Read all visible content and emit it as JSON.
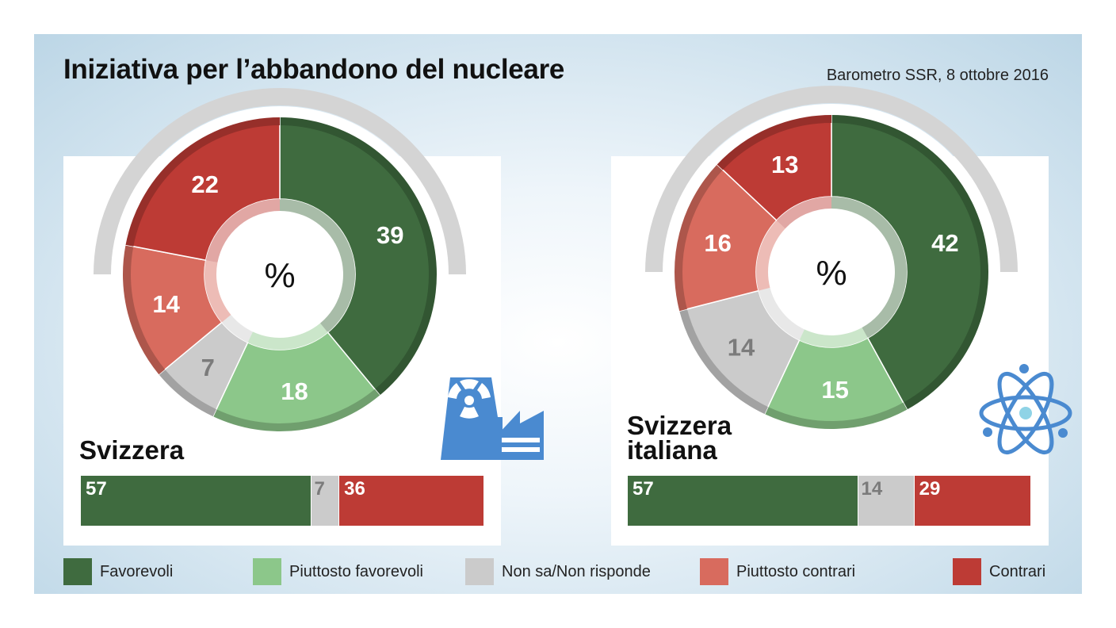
{
  "header": {
    "title": "Iniziativa per l’abbandono del nucleare",
    "source": "Barometro SSR, 8 ottobre 2016"
  },
  "colors": {
    "favorevoli": "#3f6b3f",
    "piuttosto_favorevoli": "#8cc78a",
    "non_sa": "#cbcbcb",
    "piuttosto_contrari": "#d86b5e",
    "contrari": "#bd3b35",
    "icon_blue": "#4a8ad0"
  },
  "donut_center_label": "%",
  "legend": [
    {
      "label": "Favorevoli",
      "color": "#3f6b3f"
    },
    {
      "label": "Piuttosto favorevoli",
      "color": "#8cc78a"
    },
    {
      "label": "Non sa/Non risponde",
      "color": "#cbcbcb"
    },
    {
      "label": "Piuttosto contrari",
      "color": "#d86b5e"
    },
    {
      "label": "Contrari",
      "color": "#bd3b35"
    }
  ],
  "regions": {
    "svizzera": {
      "label": "Svizzera",
      "icon": "nuclear-power-plant-icon"
    },
    "svizzera_italiana": {
      "label": "Svizzera italiana",
      "icon": "atom-icon"
    }
  },
  "chart_data": [
    {
      "type": "pie",
      "name": "Svizzera",
      "categories": [
        "Favorevoli",
        "Piuttosto favorevoli",
        "Non sa/Non risponde",
        "Piuttosto contrari",
        "Contrari"
      ],
      "values": [
        39,
        18,
        7,
        14,
        22
      ],
      "unit": "%"
    },
    {
      "type": "bar",
      "name": "Svizzera",
      "categories": [
        "Favorevoli",
        "Non sa/Non risponde",
        "Contrari"
      ],
      "values": [
        57,
        7,
        36
      ],
      "stacked": true
    },
    {
      "type": "pie",
      "name": "Svizzera italiana",
      "categories": [
        "Favorevoli",
        "Piuttosto favorevoli",
        "Non sa/Non risponde",
        "Piuttosto contrari",
        "Contrari"
      ],
      "values": [
        42,
        15,
        14,
        16,
        13
      ],
      "unit": "%"
    },
    {
      "type": "bar",
      "name": "Svizzera italiana",
      "categories": [
        "Favorevoli",
        "Non sa/Non risponde",
        "Contrari"
      ],
      "values": [
        57,
        14,
        29
      ],
      "stacked": true
    }
  ]
}
